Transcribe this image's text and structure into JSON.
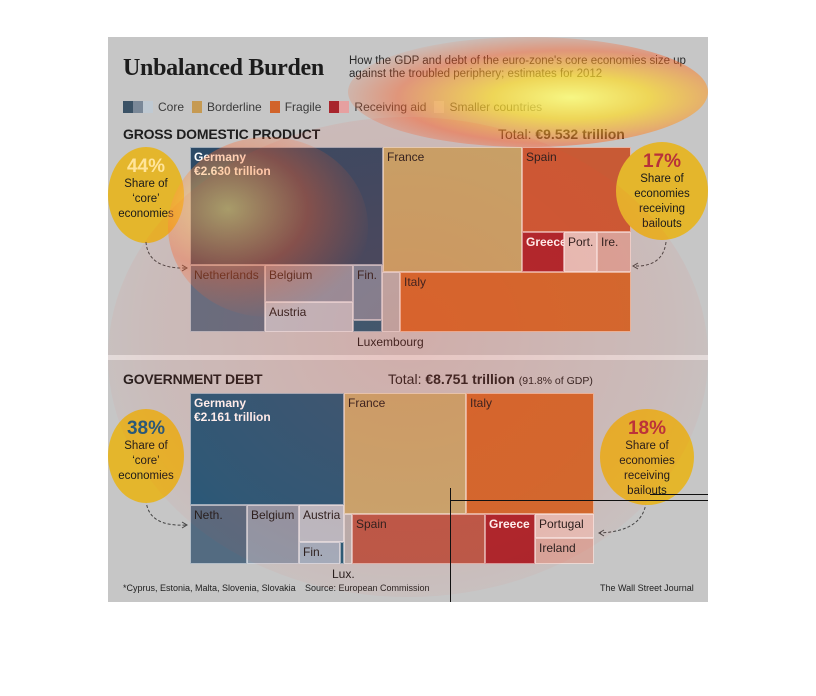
{
  "header": {
    "title": "Unbalanced Burden",
    "subtitle": "How the GDP and debt of the euro-zone's core economies size up against the troubled periphery; estimates for 2012"
  },
  "legend": {
    "items": [
      {
        "label": "Core",
        "colors": [
          "#3b5266",
          "#7a8898",
          "#bfc9d2"
        ]
      },
      {
        "label": "Borderline",
        "color": "#c69a52"
      },
      {
        "label": "Fragile",
        "color": "#d1632a"
      },
      {
        "label": "Receiving aid",
        "colors": [
          "#a8242c",
          "#e6a0a0"
        ]
      },
      {
        "label": "Smaller countries",
        "color": "#d9d9d9"
      }
    ]
  },
  "gdp": {
    "section_title": "GROSS DOMESTIC PRODUCT",
    "total_prefix": "Total: ",
    "total_value": "€9.532 trillion",
    "left_circle": {
      "pct": "44%",
      "caption": [
        "Share of",
        "‘core’",
        "economies"
      ]
    },
    "right_circle": {
      "pct": "17%",
      "caption": [
        "Share of",
        "economies",
        "receiving",
        "bailouts"
      ]
    },
    "luxembourg_label": "Luxembourg"
  },
  "debt": {
    "section_title": "GOVERNMENT DEBT",
    "total_prefix": "Total: ",
    "total_value": "€8.751 trillion",
    "total_pct": "(91.8% of GDP)",
    "left_circle": {
      "pct": "38%",
      "caption": [
        "Share of",
        "‘core’",
        "economies"
      ]
    },
    "right_circle": {
      "pct": "18%",
      "caption": [
        "Share of",
        "economies",
        "receiving",
        "bailouts"
      ]
    },
    "lux_label": "Lux."
  },
  "footer": {
    "note": "*Cyprus, Estonia, Malta, Slovenia, Slovakia",
    "source": "Source: European Commission",
    "credit": "The Wall Street Journal"
  },
  "chart_data": [
    {
      "type": "treemap",
      "title": "GROSS DOMESTIC PRODUCT",
      "total": "€9.532 trillion",
      "tiles": [
        {
          "name": "Germany",
          "value": "€2.630 trillion",
          "group": "Core"
        },
        {
          "name": "France",
          "group": "Borderline"
        },
        {
          "name": "Spain",
          "group": "Fragile"
        },
        {
          "name": "Greece",
          "group": "Receiving aid"
        },
        {
          "name": "Port.",
          "group": "Receiving aid"
        },
        {
          "name": "Ire.",
          "group": "Receiving aid"
        },
        {
          "name": "Netherlands",
          "group": "Core"
        },
        {
          "name": "Belgium",
          "group": "Core"
        },
        {
          "name": "Austria",
          "group": "Core"
        },
        {
          "name": "Fin.",
          "group": "Core"
        },
        {
          "name": "Luxembourg",
          "group": "Core"
        },
        {
          "name": "Italy",
          "group": "Fragile"
        }
      ],
      "share_core": "44%",
      "share_bailouts": "17%"
    },
    {
      "type": "treemap",
      "title": "GOVERNMENT DEBT",
      "total": "€8.751 trillion",
      "total_pct_of_gdp": "91.8%",
      "tiles": [
        {
          "name": "Germany",
          "value": "€2.161 trillion",
          "group": "Core"
        },
        {
          "name": "France",
          "group": "Borderline"
        },
        {
          "name": "Italy",
          "group": "Fragile"
        },
        {
          "name": "Neth.",
          "group": "Core"
        },
        {
          "name": "Belgium",
          "group": "Core"
        },
        {
          "name": "Austria",
          "group": "Core"
        },
        {
          "name": "Fin.",
          "group": "Core"
        },
        {
          "name": "Lux.",
          "group": "Core"
        },
        {
          "name": "Spain",
          "group": "Fragile"
        },
        {
          "name": "Greece",
          "group": "Receiving aid"
        },
        {
          "name": "Portugal",
          "group": "Receiving aid"
        },
        {
          "name": "Ireland",
          "group": "Receiving aid"
        }
      ],
      "share_core": "38%",
      "share_bailouts": "18%"
    }
  ]
}
